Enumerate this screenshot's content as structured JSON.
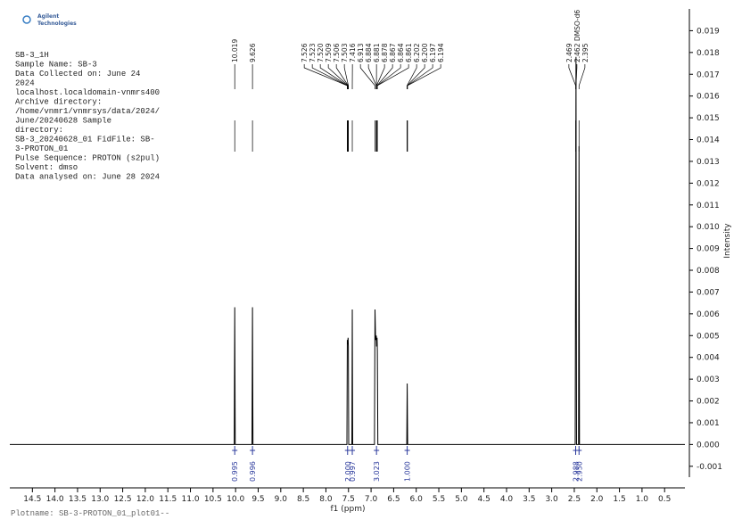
{
  "chart_data": {
    "type": "line",
    "logo": [
      "Agilent",
      "Technologies"
    ],
    "notes": [
      "SB-3_1H",
      "Sample Name: SB-3",
      "Data Collected on: June 24",
      "2024",
      "localhost.localdomain-vnmrs400",
      "Archive directory:",
      "/home/vnmr1/vnmrsys/data/2024/",
      "June/20240628 Sample",
      "directory:",
      "SB-3_20240628_01 FidFile: SB-",
      "3-PROTON_01",
      "Pulse Sequence: PROTON (s2pul)",
      "Solvent: dmso",
      "Data analysed on: June 28 2024"
    ],
    "x_label": "f1 (ppm)",
    "y_label": "Intensity",
    "footer": "Plotname:  SB-3-PROTON_01_plot01--",
    "color": "#000000",
    "x": [
      15,
      10.03,
      10.019,
      10.008,
      9.637,
      9.626,
      9.615,
      7.535,
      7.526,
      7.52,
      7.509,
      7.503,
      7.495,
      7.425,
      7.416,
      7.407,
      6.925,
      6.913,
      6.9,
      6.884,
      6.878,
      6.867,
      6.861,
      6.85,
      6.21,
      6.2,
      6.19,
      2.48,
      2.469,
      2.462,
      2.45,
      2.405,
      2.395,
      2.385,
      0.05
    ],
    "values": [
      0,
      0,
      0.0063,
      0,
      0,
      0.0063,
      0,
      0,
      0.0048,
      0.0046,
      0.0049,
      0.0045,
      0,
      0,
      0.0062,
      0,
      0,
      0.0062,
      0.0048,
      0.005,
      0.0045,
      0.0049,
      0.0043,
      0,
      0,
      0.0028,
      0,
      0,
      0.01,
      0.0178,
      0,
      0,
      0.0137,
      0,
      0
    ],
    "xlim": [
      15,
      0.05
    ],
    "ylim": [
      -0.0015,
      0.02
    ],
    "xticks": [
      14.5,
      {
        "value": 14,
        "label": "14.0"
      },
      13.5,
      {
        "value": 13,
        "label": "13.0"
      },
      12.5,
      {
        "value": 12,
        "label": "12.0"
      },
      11.5,
      {
        "value": 11,
        "label": "11.0"
      },
      10.5,
      {
        "value": 10,
        "label": "10.0"
      },
      9.5,
      {
        "value": 9,
        "label": "9.0"
      },
      8.5,
      {
        "value": 8,
        "label": "8.0"
      },
      7.5,
      {
        "value": 7,
        "label": "7.0"
      },
      6.5,
      {
        "value": 6,
        "label": "6.0"
      },
      5.5,
      {
        "value": 5,
        "label": "5.0"
      },
      4.5,
      {
        "value": 4,
        "label": "4.0"
      },
      3.5,
      {
        "value": 3,
        "label": "3.0"
      },
      2.5,
      {
        "value": 2,
        "label": "2.0"
      },
      1.5,
      {
        "value": 1,
        "label": "1.0"
      },
      0.5
    ],
    "yticks": [
      -0.001,
      {
        "value": 0,
        "label": "0.000"
      },
      0.001,
      0.002,
      0.003,
      0.004,
      0.005,
      0.006,
      0.007,
      0.008,
      0.009,
      {
        "value": 0.01,
        "label": "0.010"
      },
      0.011,
      0.012,
      0.013,
      0.014,
      0.015,
      0.016,
      0.017,
      0.018,
      0.019
    ],
    "peak_labels": [
      {
        "value": 10.019,
        "label": "10.019"
      },
      {
        "value": 9.626,
        "label": "9.626"
      },
      {
        "value": 7.526,
        "label": "7.526"
      },
      {
        "value": 7.523,
        "label": "7.523"
      },
      {
        "value": 7.52,
        "label": "7.520"
      },
      {
        "value": 7.509,
        "label": "7.509"
      },
      {
        "value": 7.506,
        "label": "7.506"
      },
      {
        "value": 7.503,
        "label": "7.503"
      },
      {
        "value": 7.416,
        "label": "7.416"
      },
      {
        "value": 6.913,
        "label": "6.913"
      },
      {
        "value": 6.884,
        "label": "6.884"
      },
      {
        "value": 6.881,
        "label": "6.881"
      },
      {
        "value": 6.878,
        "label": "6.878"
      },
      {
        "value": 6.867,
        "label": "6.867"
      },
      {
        "value": 6.864,
        "label": "6.864"
      },
      {
        "value": 6.861,
        "label": "6.861"
      },
      {
        "value": 6.202,
        "label": "6.202"
      },
      {
        "value": 6.2,
        "label": "6.200"
      },
      {
        "value": 6.197,
        "label": "6.197"
      },
      {
        "value": 6.194,
        "label": "6.194"
      },
      {
        "value": 2.469,
        "label": "2.469"
      },
      {
        "value": 2.462,
        "label": "2.462 DMSO-d6"
      },
      {
        "value": 2.395,
        "label": "2.395"
      }
    ],
    "integrals": {
      "x": [
        10.019,
        9.626,
        7.52,
        7.416,
        6.88,
        6.2,
        2.469,
        2.395
      ],
      "values": [
        0.995,
        0.996,
        2.0,
        0.997,
        3.023,
        1.0,
        2.988,
        2.95
      ],
      "value_labels": [
        "0.995",
        "0.996",
        "2.000",
        "0.997",
        "3.023",
        "1.000",
        "2.988",
        "2.950"
      ]
    }
  }
}
